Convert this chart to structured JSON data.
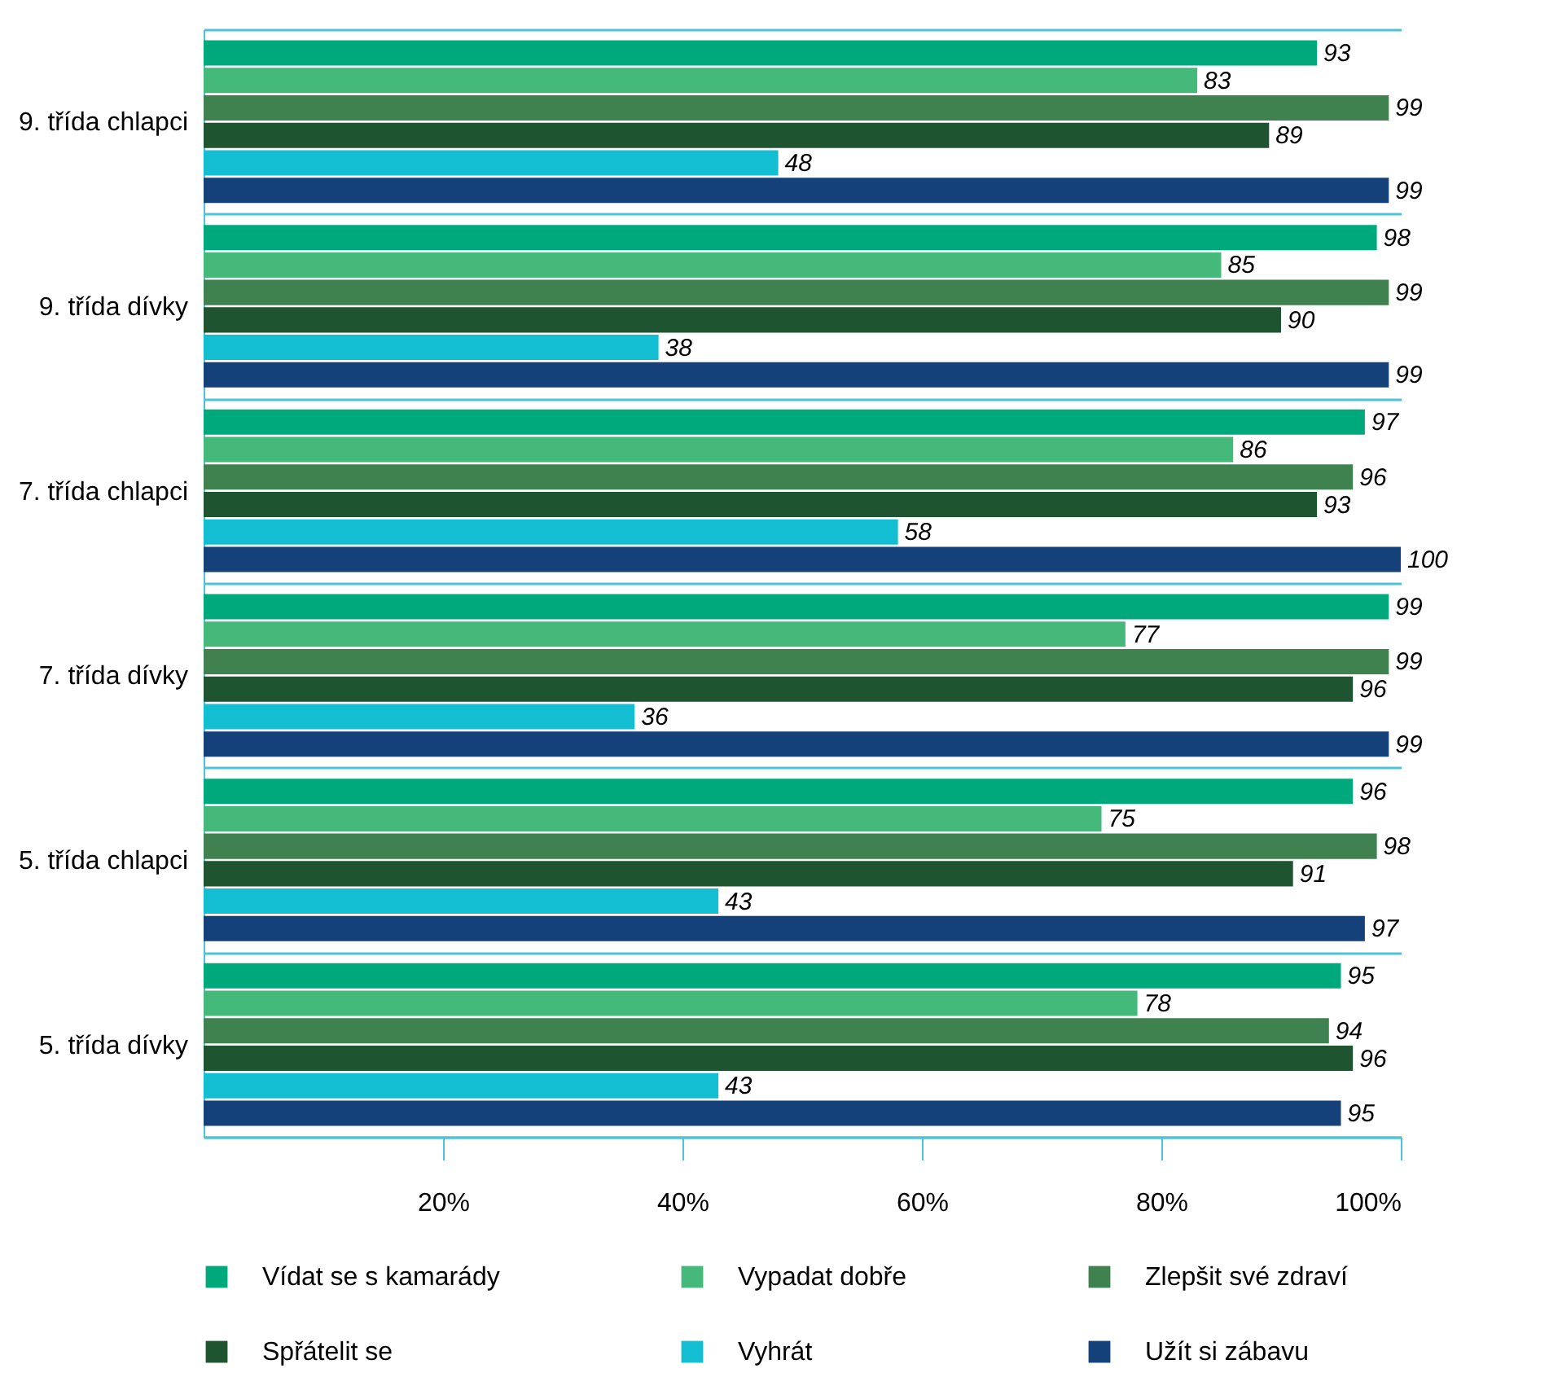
{
  "chart_data": {
    "type": "bar",
    "orientation": "horizontal",
    "categories": [
      "9. třída chlapci",
      "9. třída dívky",
      "7. třída chlapci",
      "7. třída dívky",
      "5. třída chlapci",
      "5. třída dívky"
    ],
    "series": [
      {
        "name": "Vídat se s kamarády",
        "color": "#00a97c",
        "values": [
          93,
          98,
          97,
          99,
          96,
          95
        ]
      },
      {
        "name": "Vypadat dobře",
        "color": "#45b97a",
        "values": [
          83,
          85,
          86,
          77,
          75,
          78
        ]
      },
      {
        "name": "Zlepšit své zdraví",
        "color": "#3f8250",
        "values": [
          99,
          99,
          96,
          99,
          98,
          94
        ]
      },
      {
        "name": "Spřátelit se",
        "color": "#1e5530",
        "values": [
          89,
          90,
          93,
          96,
          91,
          96
        ]
      },
      {
        "name": "Vyhrát",
        "color": "#14bed2",
        "values": [
          48,
          38,
          58,
          36,
          43,
          43
        ]
      },
      {
        "name": "Užít si zábavu",
        "color": "#15417a",
        "values": [
          99,
          99,
          100,
          99,
          97,
          95
        ]
      }
    ],
    "xlim": [
      0,
      100
    ],
    "xticks": [
      {
        "value": 20,
        "label": "20%"
      },
      {
        "value": 40,
        "label": "40%"
      },
      {
        "value": 60,
        "label": "60%"
      },
      {
        "value": 80,
        "label": "80%"
      },
      {
        "value": 100,
        "label": "100%"
      }
    ],
    "data_labels": true,
    "legend": "bottom",
    "grid": false
  }
}
